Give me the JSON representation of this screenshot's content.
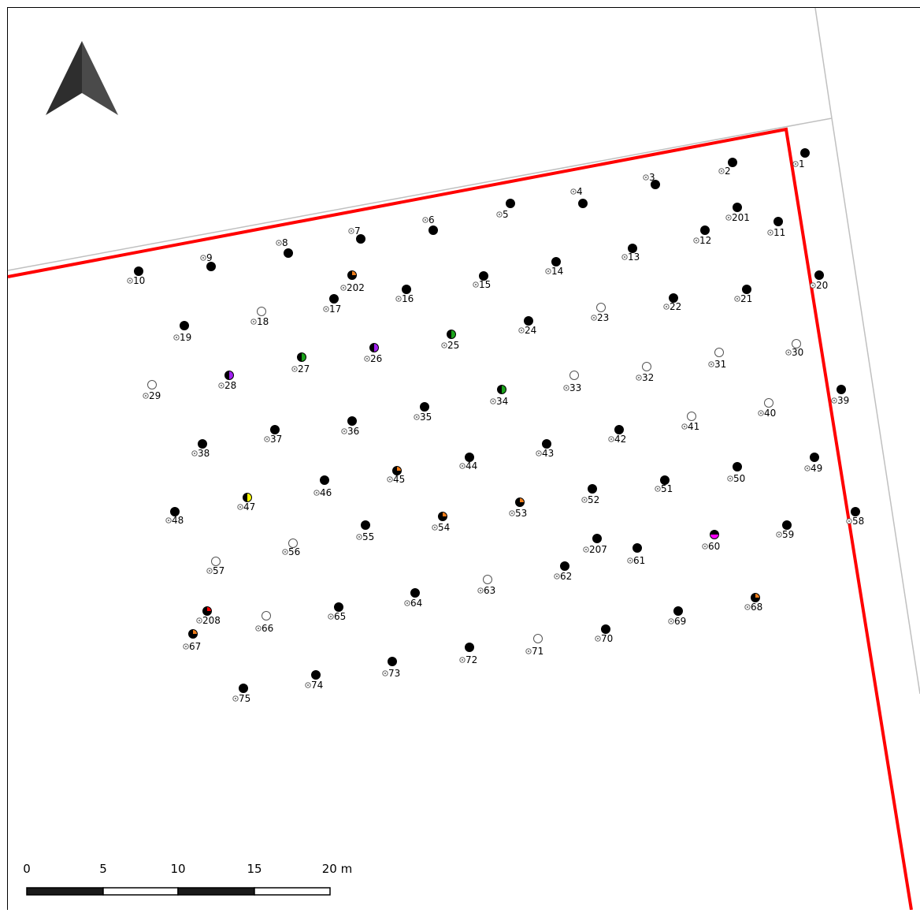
{
  "map": {
    "colors": {
      "boundary": "#ff0000",
      "parcel_line": "#c0c0c0",
      "tree_filled": "#000000",
      "tree_empty": "#ffffff",
      "green": "#1aa31a",
      "orange": "#f07d1a",
      "purple": "#a020f0",
      "magenta": "#ff00ff",
      "yellow": "#ffff00",
      "red": "#ff0000"
    },
    "north_arrow": {
      "icon": "north-arrow-icon"
    },
    "scale_bar": {
      "labels": [
        "0",
        "5",
        "10",
        "15",
        "20 m"
      ]
    },
    "trees": [
      {
        "id": "1",
        "state": "filled"
      },
      {
        "id": "2",
        "state": "filled"
      },
      {
        "id": "3",
        "state": "filled"
      },
      {
        "id": "4",
        "state": "filled"
      },
      {
        "id": "5",
        "state": "filled"
      },
      {
        "id": "6",
        "state": "filled"
      },
      {
        "id": "7",
        "state": "filled"
      },
      {
        "id": "8",
        "state": "filled"
      },
      {
        "id": "9",
        "state": "filled"
      },
      {
        "id": "10",
        "state": "filled"
      },
      {
        "id": "11",
        "state": "filled"
      },
      {
        "id": "12",
        "state": "filled"
      },
      {
        "id": "13",
        "state": "filled"
      },
      {
        "id": "14",
        "state": "filled"
      },
      {
        "id": "15",
        "state": "filled"
      },
      {
        "id": "16",
        "state": "filled"
      },
      {
        "id": "17",
        "state": "filled"
      },
      {
        "id": "18",
        "state": "empty"
      },
      {
        "id": "19",
        "state": "filled"
      },
      {
        "id": "20",
        "state": "filled"
      },
      {
        "id": "21",
        "state": "filled"
      },
      {
        "id": "22",
        "state": "filled"
      },
      {
        "id": "23",
        "state": "empty"
      },
      {
        "id": "24",
        "state": "filled"
      },
      {
        "id": "25",
        "state": "half",
        "color": "green"
      },
      {
        "id": "26",
        "state": "half",
        "color": "purple"
      },
      {
        "id": "27",
        "state": "half",
        "color": "green"
      },
      {
        "id": "28",
        "state": "half",
        "color": "purple"
      },
      {
        "id": "29",
        "state": "empty"
      },
      {
        "id": "30",
        "state": "empty"
      },
      {
        "id": "31",
        "state": "empty"
      },
      {
        "id": "32",
        "state": "empty"
      },
      {
        "id": "33",
        "state": "empty"
      },
      {
        "id": "34",
        "state": "half",
        "color": "green"
      },
      {
        "id": "35",
        "state": "filled"
      },
      {
        "id": "36",
        "state": "filled"
      },
      {
        "id": "37",
        "state": "filled"
      },
      {
        "id": "38",
        "state": "filled"
      },
      {
        "id": "39",
        "state": "filled"
      },
      {
        "id": "40",
        "state": "empty"
      },
      {
        "id": "41",
        "state": "empty"
      },
      {
        "id": "42",
        "state": "filled"
      },
      {
        "id": "43",
        "state": "filled"
      },
      {
        "id": "44",
        "state": "filled"
      },
      {
        "id": "45",
        "state": "quarter",
        "color": "orange"
      },
      {
        "id": "46",
        "state": "filled"
      },
      {
        "id": "47",
        "state": "half",
        "color": "yellow"
      },
      {
        "id": "48",
        "state": "filled"
      },
      {
        "id": "49",
        "state": "filled"
      },
      {
        "id": "50",
        "state": "filled"
      },
      {
        "id": "51",
        "state": "filled"
      },
      {
        "id": "52",
        "state": "filled"
      },
      {
        "id": "53",
        "state": "quarter",
        "color": "orange"
      },
      {
        "id": "54",
        "state": "quarter",
        "color": "orange"
      },
      {
        "id": "55",
        "state": "filled"
      },
      {
        "id": "56",
        "state": "empty"
      },
      {
        "id": "57",
        "state": "empty"
      },
      {
        "id": "58",
        "state": "filled"
      },
      {
        "id": "59",
        "state": "filled"
      },
      {
        "id": "60",
        "state": "bottomhalf",
        "color": "magenta"
      },
      {
        "id": "61",
        "state": "filled"
      },
      {
        "id": "62",
        "state": "filled"
      },
      {
        "id": "63",
        "state": "empty"
      },
      {
        "id": "64",
        "state": "filled"
      },
      {
        "id": "65",
        "state": "filled"
      },
      {
        "id": "66",
        "state": "empty"
      },
      {
        "id": "67",
        "state": "quarter",
        "color": "orange"
      },
      {
        "id": "68",
        "state": "quarter",
        "color": "orange"
      },
      {
        "id": "69",
        "state": "filled"
      },
      {
        "id": "70",
        "state": "filled"
      },
      {
        "id": "71",
        "state": "empty"
      },
      {
        "id": "72",
        "state": "filled"
      },
      {
        "id": "73",
        "state": "filled"
      },
      {
        "id": "74",
        "state": "filled"
      },
      {
        "id": "75",
        "state": "filled"
      },
      {
        "id": "201",
        "state": "filled"
      },
      {
        "id": "202",
        "state": "quarter",
        "color": "orange"
      },
      {
        "id": "207",
        "state": "filled"
      },
      {
        "id": "208",
        "state": "quarter",
        "color": "red"
      }
    ]
  }
}
